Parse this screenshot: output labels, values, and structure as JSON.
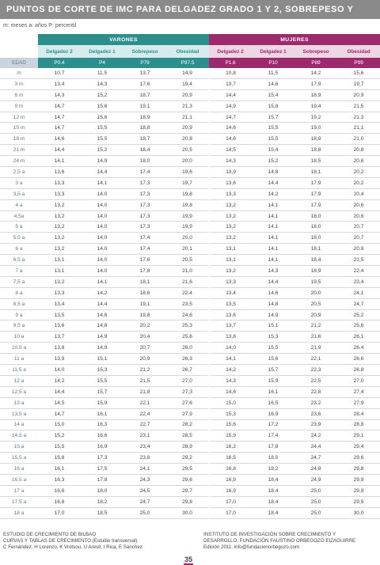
{
  "title": "PUNTOS DE CORTE DE IMC PARA DELGADEZ GRADO  1 Y 2, SOBREPESO Y OBESIDAD",
  "legend": "m: meses   a: años   P: percentil",
  "groups": {
    "varones": "VARONES",
    "mujeres": "MUJERES"
  },
  "columns": [
    "Delgadez 2",
    "Delgadez 1",
    "Sobrepeso",
    "Obesidad",
    "Delgadez 2",
    "Delgadez 1",
    "Sobrepeso",
    "Obesidad"
  ],
  "percentiles": [
    "EDAD",
    "P0.4",
    "P4",
    "P79",
    "P97.5",
    "P1.6",
    "P10",
    "P89",
    "P99"
  ],
  "rows": [
    [
      "m",
      "10,7",
      "11,5",
      "13,7",
      "14,9",
      "10,8",
      "11,5",
      "14,2",
      "15,6"
    ],
    [
      "3 m",
      "13,4",
      "14,3",
      "17,6",
      "19,4",
      "13,7",
      "14,6",
      "17,9",
      "19,7"
    ],
    [
      "6 m",
      "14,3",
      "15,2",
      "18,7",
      "20,9",
      "14,4",
      "15,4",
      "18,9",
      "20,9"
    ],
    [
      "9 m",
      "14,7",
      "15,6",
      "19,1",
      "21,3",
      "14,9",
      "15,8",
      "19,4",
      "21,5"
    ],
    [
      "12 m",
      "14,7",
      "15,6",
      "18,9",
      "21,1",
      "14,7",
      "15,7",
      "19,2",
      "21,3"
    ],
    [
      "15 m",
      "14,7",
      "15,5",
      "18,8",
      "20,9",
      "14,6",
      "15,5",
      "19,0",
      "21,1"
    ],
    [
      "18 m",
      "14,6",
      "15,5",
      "18,7",
      "20,8",
      "14,6",
      "15,5",
      "18,9",
      "21,0"
    ],
    [
      "21 m",
      "14,4",
      "15,2",
      "18,4",
      "20,5",
      "14,5",
      "15,4",
      "18,8",
      "20,8"
    ],
    [
      "24 m",
      "14,1",
      "14,9",
      "18,0",
      "20,0",
      "14,3",
      "15,2",
      "18,5",
      "20,6"
    ],
    [
      "2,5 a",
      "13,6",
      "14,4",
      "17,4",
      "19,6",
      "13,9",
      "14,8",
      "18,1",
      "20,2"
    ],
    [
      "3 a",
      "13,3",
      "14,1",
      "17,3",
      "19,7",
      "13,6",
      "14,4",
      "17,9",
      "20,2"
    ],
    [
      "3,5 a",
      "13,3",
      "14,0",
      "17,3",
      "19,8",
      "13,3",
      "14,2",
      "17,9",
      "20,4"
    ],
    [
      "4 a",
      "13,2",
      "14,0",
      "17,3",
      "19,8",
      "13,2",
      "14,1",
      "17,9",
      "20,6"
    ],
    [
      "4,5a",
      "13,2",
      "14,0",
      "17,3",
      "19,9",
      "13,2",
      "14,1",
      "18,0",
      "20,6"
    ],
    [
      "5 a",
      "13,2",
      "14,0",
      "17,3",
      "19,9",
      "13,2",
      "14,1",
      "18,0",
      "20,7"
    ],
    [
      "5,5 a",
      "13,2",
      "14,0",
      "17,4",
      "20,0",
      "13,2",
      "14,1",
      "18,0",
      "20,7"
    ],
    [
      "6 a",
      "13,2",
      "14,0",
      "17,4",
      "20,1",
      "13,1",
      "14,1",
      "18,1",
      "20,9"
    ],
    [
      "6,5 a",
      "13,1",
      "14,0",
      "17,6",
      "20,5",
      "13,1",
      "14,1",
      "18,4",
      "21,5"
    ],
    [
      "7 a",
      "13,1",
      "14,0",
      "17,8",
      "21,0",
      "13,2",
      "14,3",
      "18,9",
      "22,4"
    ],
    [
      "7,5 a",
      "13,2",
      "14,1",
      "18,1",
      "21,6",
      "13,3",
      "14,4",
      "19,5",
      "23,4"
    ],
    [
      "8 a",
      "13,3",
      "14,2",
      "18,6",
      "22,4",
      "13,4",
      "14,6",
      "20,0",
      "24,1"
    ],
    [
      "8,5 a",
      "13,4",
      "14,4",
      "19,1",
      "23,5",
      "13,5",
      "14,8",
      "20,5",
      "24,7"
    ],
    [
      "9 a",
      "13,5",
      "14,6",
      "19,8",
      "24,6",
      "13,6",
      "14,9",
      "20,9",
      "25,2"
    ],
    [
      "9,5 a",
      "13,6",
      "14,8",
      "20,2",
      "25,3",
      "13,7",
      "15,1",
      "21,2",
      "25,6"
    ],
    [
      "10 a",
      "13,7",
      "14,9",
      "20,4",
      "25,6",
      "13,8",
      "15,3",
      "21,6",
      "26,1"
    ],
    [
      "10,5 a",
      "13,8",
      "14,9",
      "20,7",
      "26,0",
      "14,0",
      "15,5",
      "21,9",
      "26,4"
    ],
    [
      "11 a",
      "13,9",
      "15,1",
      "20,9",
      "26,3",
      "14,1",
      "15,6",
      "22,1",
      "26,6"
    ],
    [
      "11,5 a",
      "14,0",
      "15,3",
      "21,2",
      "26,7",
      "14,2",
      "15,7",
      "22,3",
      "26,8"
    ],
    [
      "12 a",
      "14,2",
      "15,5",
      "21,5",
      "27,0",
      "14,3",
      "15,9",
      "22,5",
      "27,0"
    ],
    [
      "12,5 a",
      "14,4",
      "15,7",
      "21,8",
      "27,3",
      "14,6",
      "16,1",
      "22,8",
      "27,4"
    ],
    [
      "13 a",
      "14,5",
      "15,9",
      "22,1",
      "27,6",
      "15,0",
      "16,5",
      "23,2",
      "27,9"
    ],
    [
      "13,5 a",
      "14,7",
      "16,1",
      "22,4",
      "27,9",
      "15,3",
      "16,9",
      "23,6",
      "28,4"
    ],
    [
      "14 a",
      "15,0",
      "16,3",
      "22,7",
      "28,2",
      "15,6",
      "17,2",
      "23,9",
      "28,8"
    ],
    [
      "14,5 a",
      "15,2",
      "16,6",
      "23,1",
      "28,5",
      "15,9",
      "17,4",
      "24,2",
      "29,1"
    ],
    [
      "15 a",
      "15,5",
      "16,9",
      "23,4",
      "28,9",
      "16,2",
      "17,8",
      "24,4",
      "29,4"
    ],
    [
      "15,5 a",
      "15,8",
      "17,3",
      "23,8",
      "29,2",
      "16,5",
      "18,0",
      "24,7",
      "29,6"
    ],
    [
      "16 a",
      "16,1",
      "17,5",
      "24,1",
      "29,5",
      "16,8",
      "18,2",
      "24,8",
      "29,8"
    ],
    [
      "16,5 a",
      "16,3",
      "17,8",
      "24,3",
      "29,6",
      "16,9",
      "18,4",
      "24,9",
      "29,9"
    ],
    [
      "17 a",
      "16,6",
      "18,0",
      "24,5",
      "29,7",
      "16,9",
      "18,4",
      "25,0",
      "29,9"
    ],
    [
      "17,5 a",
      "16,8",
      "18,2",
      "24,7",
      "29,8",
      "17,0",
      "18,4",
      "25,0",
      "29,9"
    ],
    [
      "18 a",
      "17,0",
      "18,5",
      "25,0",
      "30,0",
      "17,0",
      "18,4",
      "25,0",
      "30,0"
    ]
  ],
  "footer_left": [
    "ESTUDIO DE CRECIMIENTO DE BILBAO",
    "CURVAS Y TABLAS DE CRECIMIENTO (Estudio transversal)",
    "C Fernández, H Lorenzo, K Vrotsou, U Aresti, I Rica, E Sánchez"
  ],
  "footer_right": [
    "INSTITUTO DE INVESTIGACIÓN SOBRE CRECIMIENTO Y",
    "DESARROLLO. FUNDACIÓN FAUSTINO ORBEGOZO EIZAGUIRRE",
    "Edición 2011. info@fundacionorbegozo.com"
  ],
  "page_number": "35",
  "colors": {
    "varones": "#2c8f8e",
    "mujeres": "#9e2a6e",
    "title_bg": "#8a8a8a"
  }
}
